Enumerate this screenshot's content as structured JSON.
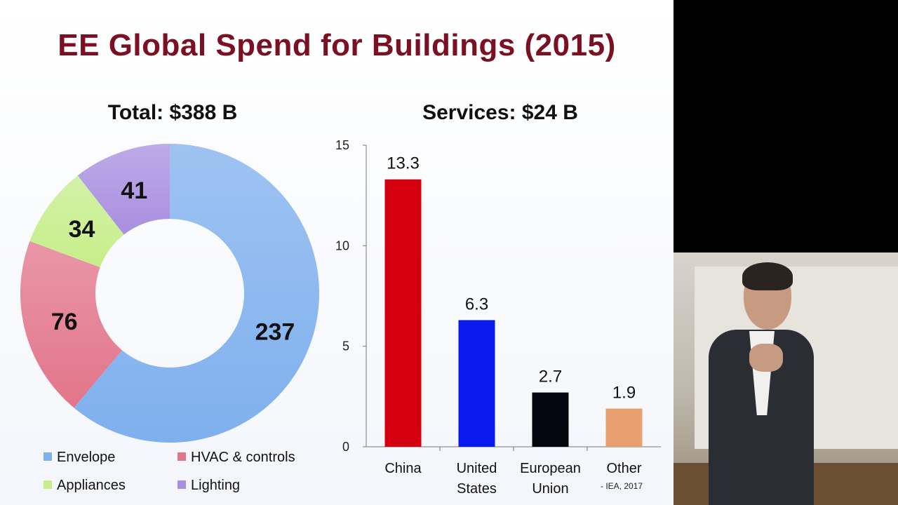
{
  "slide": {
    "title": "EE Global Spend for Buildings (2015)",
    "source_note": "- IEA, 2017"
  },
  "chart_data": [
    {
      "type": "pie",
      "variant": "donut",
      "title": "Total: $388 B",
      "categories": [
        "Envelope",
        "HVAC & controls",
        "Appliances",
        "Lighting"
      ],
      "values": [
        237,
        76,
        34,
        41
      ],
      "colors": [
        "#7fb0ee",
        "#e3758a",
        "#c7ee8a",
        "#a98fe0"
      ],
      "legend_position": "bottom"
    },
    {
      "type": "bar",
      "title": "Services: $24 B",
      "categories": [
        "China",
        "United States",
        "European Union",
        "Other"
      ],
      "category_lines": [
        [
          "China"
        ],
        [
          "United",
          "States"
        ],
        [
          "European",
          "Union"
        ],
        [
          "Other"
        ]
      ],
      "values": [
        13.3,
        6.3,
        2.7,
        1.9
      ],
      "value_labels": [
        "13.3",
        "6.3",
        "2.7",
        "1.9"
      ],
      "colors": [
        "#d4000f",
        "#0a1aef",
        "#050510",
        "#e8a070"
      ],
      "ylim": [
        0,
        15
      ],
      "yticks": [
        0,
        5,
        10,
        15
      ],
      "grid": false
    }
  ]
}
